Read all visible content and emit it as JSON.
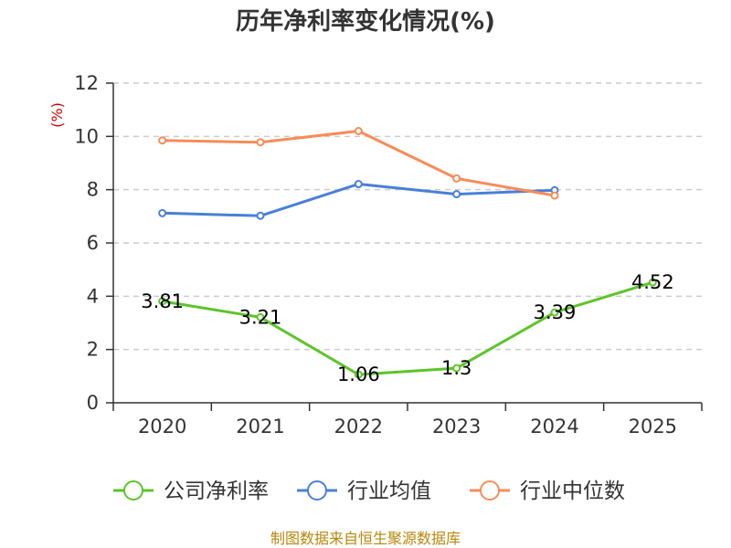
{
  "chart_data": {
    "type": "line",
    "title": "历年净利率变化情况(%)",
    "ylabel": "(%)",
    "xlabel": "",
    "categories": [
      "2020",
      "2021",
      "2022",
      "2023",
      "2024",
      "2025"
    ],
    "ylim": [
      0,
      12
    ],
    "yticks": [
      0,
      2,
      4,
      6,
      8,
      10,
      12
    ],
    "grid": true,
    "legend_position": "bottom",
    "series": [
      {
        "name": "公司净利率",
        "color": "#5dc42a",
        "values": [
          3.81,
          3.21,
          1.06,
          1.3,
          3.39,
          4.52
        ],
        "labels": [
          "3.81",
          "3.21",
          "1.06",
          "1.3",
          "3.39",
          "4.52"
        ]
      },
      {
        "name": "行业均值",
        "color": "#4a7fd8",
        "values": [
          7.12,
          7.02,
          8.21,
          7.83,
          7.98,
          null
        ]
      },
      {
        "name": "行业中位数",
        "color": "#f78c58",
        "values": [
          9.85,
          9.78,
          10.2,
          8.42,
          7.78,
          null
        ]
      }
    ]
  },
  "source_note": "制图数据来自恒生聚源数据库",
  "colors": {
    "axis": "#333333",
    "grid": "#cccccc",
    "ylabel": "#cc0000",
    "source": "#b8860b"
  }
}
